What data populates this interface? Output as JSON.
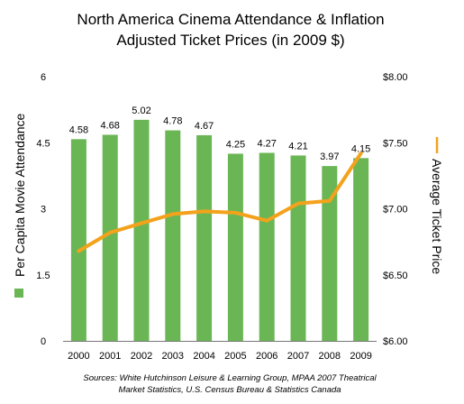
{
  "chart_data": {
    "type": "bar",
    "title_lines": [
      "North America Cinema Attendance & Inflation",
      "Adjusted Ticket Prices (in 2009 $)"
    ],
    "categories": [
      "2000",
      "2001",
      "2002",
      "2003",
      "2004",
      "2005",
      "2006",
      "2007",
      "2008",
      "2009"
    ],
    "series": [
      {
        "name": "Per Capita Movie Attendance",
        "kind": "bar",
        "axis": "left",
        "color": "#6ab655",
        "values": [
          4.58,
          4.68,
          5.02,
          4.78,
          4.67,
          4.25,
          4.27,
          4.21,
          3.97,
          4.15
        ],
        "labels": [
          "4.58",
          "4.68",
          "5.02",
          "4.78",
          "4.67",
          "4.25",
          "4.27",
          "4.21",
          "3.97",
          "4.15"
        ]
      },
      {
        "name": "Average Ticket Price",
        "kind": "line",
        "axis": "right",
        "color": "#f3a21c",
        "values": [
          6.68,
          6.82,
          6.89,
          6.96,
          6.98,
          6.97,
          6.91,
          7.04,
          7.06,
          7.42
        ]
      }
    ],
    "ylabel_left": "Per Capita Movie Attendance",
    "ylabel_right": "Average Ticket Price",
    "ylim_left": [
      0,
      6
    ],
    "yticks_left": [
      "0",
      "1.5",
      "3",
      "4.5",
      "6"
    ],
    "ylim_right": [
      6.0,
      8.0
    ],
    "yticks_right": [
      "$6.00",
      "$6.50",
      "$7.00",
      "$7.50",
      "$8.00"
    ],
    "grid": false,
    "legend": "on-axes"
  },
  "source_lines": [
    "Sources:  White Hutchinson Leisure & Learning Group, MPAA  2007 Theatrical",
    "Market Statistics, U.S. Census Bureau & Statistics Canada"
  ]
}
